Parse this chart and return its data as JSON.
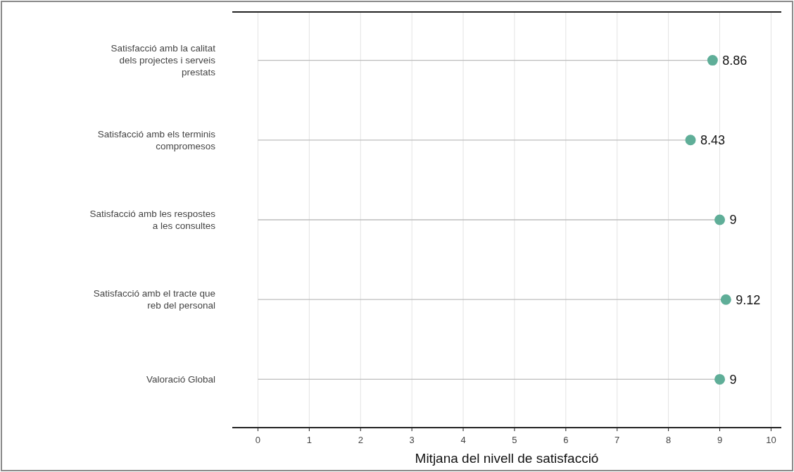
{
  "chart_data": {
    "type": "lollipop",
    "orientation": "horizontal",
    "xlabel": "Mitjana del nivell de satisfacció",
    "categories": [
      "Satisfacció amb la calitat dels projectes i serveis prestats",
      "Satisfacció amb els terminis compromesos",
      "Satisfacció amb les respostes a les consultes",
      "Satisfacció amb el tracte que reb del personal",
      "Valoració Global"
    ],
    "values": [
      8.86,
      8.43,
      9,
      9.12,
      9
    ],
    "color": "#5fae98",
    "xlim": [
      -0.5,
      10.2
    ],
    "xticks": [
      0,
      1,
      2,
      3,
      4,
      5,
      6,
      7,
      8,
      9,
      10
    ],
    "grid": "x",
    "data_labels": true,
    "marker": "circle"
  }
}
